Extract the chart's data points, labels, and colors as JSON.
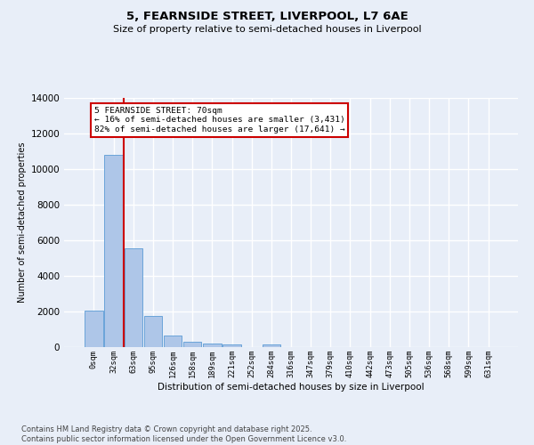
{
  "title_line1": "5, FEARNSIDE STREET, LIVERPOOL, L7 6AE",
  "title_line2": "Size of property relative to semi-detached houses in Liverpool",
  "xlabel": "Distribution of semi-detached houses by size in Liverpool",
  "ylabel": "Number of semi-detached properties",
  "bar_labels": [
    "0sqm",
    "32sqm",
    "63sqm",
    "95sqm",
    "126sqm",
    "158sqm",
    "189sqm",
    "221sqm",
    "252sqm",
    "284sqm",
    "316sqm",
    "347sqm",
    "379sqm",
    "410sqm",
    "442sqm",
    "473sqm",
    "505sqm",
    "536sqm",
    "568sqm",
    "599sqm",
    "631sqm"
  ],
  "bar_values": [
    2050,
    10800,
    5550,
    1750,
    650,
    310,
    190,
    140,
    0,
    140,
    0,
    0,
    0,
    0,
    0,
    0,
    0,
    0,
    0,
    0,
    0
  ],
  "bar_color": "#aec6e8",
  "bar_edge_color": "#5b9bd5",
  "ylim_max": 14000,
  "yticks": [
    0,
    2000,
    4000,
    6000,
    8000,
    10000,
    12000,
    14000
  ],
  "red_line_color": "#cc0000",
  "red_line_x": 1.5,
  "annotation_text": "5 FEARNSIDE STREET: 70sqm\n← 16% of semi-detached houses are smaller (3,431)\n82% of semi-detached houses are larger (17,641) →",
  "annotation_box_edge": "#cc0000",
  "footnote": "Contains HM Land Registry data © Crown copyright and database right 2025.\nContains public sector information licensed under the Open Government Licence v3.0.",
  "bg_color": "#e8eef8",
  "grid_color": "#ffffff"
}
